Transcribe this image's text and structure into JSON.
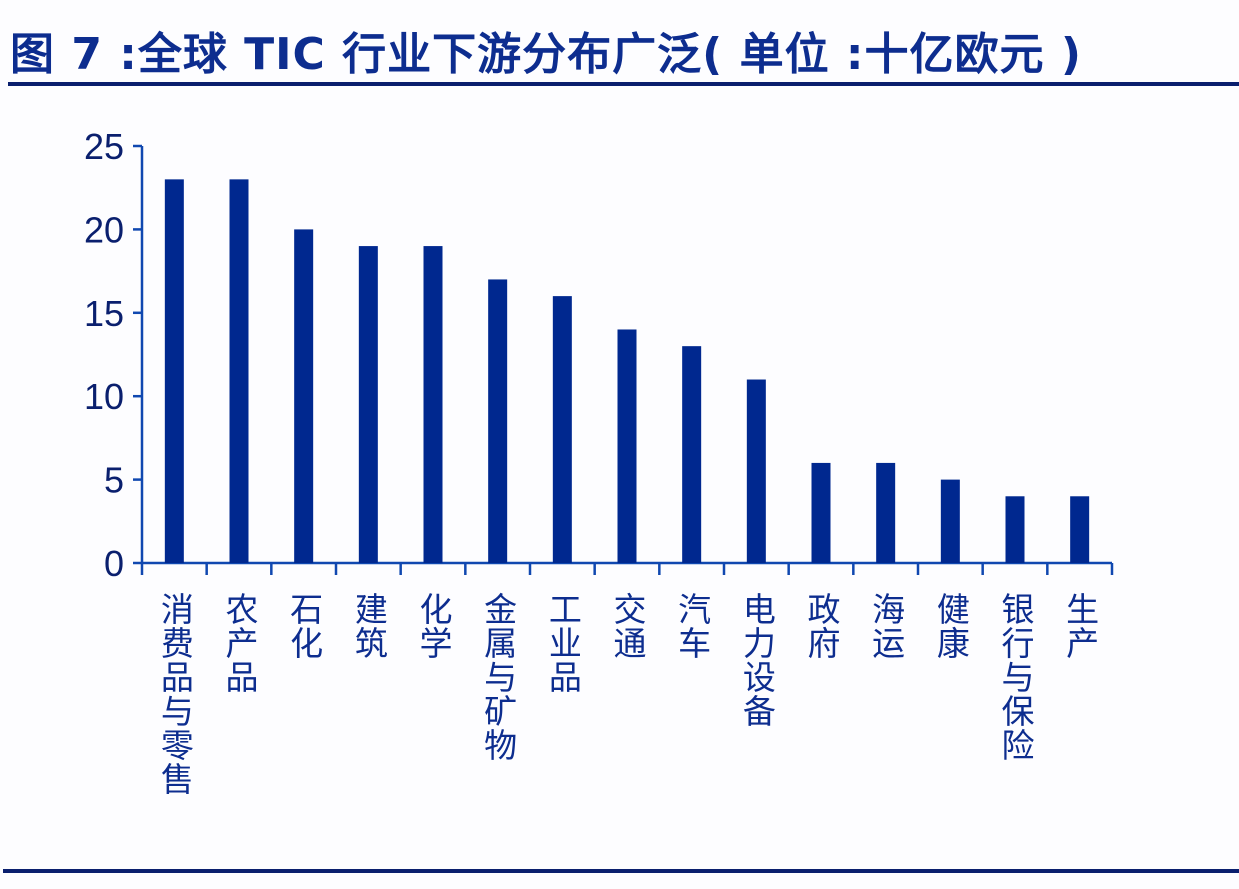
{
  "title": "图 7 :全球 TIC 行业下游分布广泛( 单位 :十亿欧元 )",
  "colors": {
    "bar": "#00288f",
    "axis": "#1048b0",
    "title": "#0d2d8f",
    "rule": "#0a1f6e"
  },
  "chart_data": {
    "type": "bar",
    "title": "图 7 :全球 TIC 行业下游分布广泛( 单位 :十亿欧元 )",
    "xlabel": "",
    "ylabel": "十亿欧元",
    "ylim": [
      0,
      25
    ],
    "yticks": [
      0,
      5,
      10,
      15,
      20,
      25
    ],
    "grid": false,
    "legend": null,
    "categories": [
      "消费品与零售",
      "农产品",
      "石化",
      "建筑",
      "化学",
      "金属与矿物",
      "工业品",
      "交通",
      "汽车",
      "电力设备",
      "政府",
      "海运",
      "健康",
      "银行与保险",
      "生产"
    ],
    "values": [
      23,
      23,
      20,
      19,
      19,
      17,
      16,
      14,
      13,
      11,
      6,
      6,
      5,
      4,
      4
    ]
  }
}
